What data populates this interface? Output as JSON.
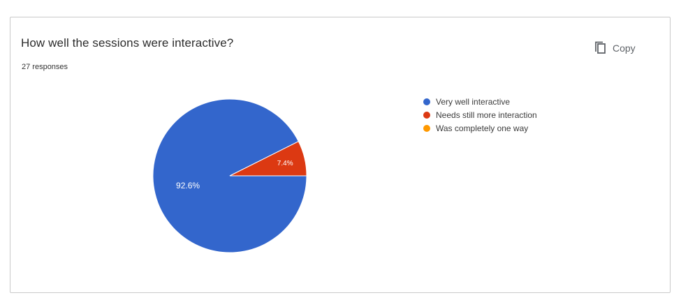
{
  "card": {
    "title": "How well the sessions were interactive?",
    "responses": "27 responses",
    "copy_label": "Copy",
    "copy_icon": "copy-icon"
  },
  "chart_data": {
    "type": "pie",
    "categories": [
      "Very well interactive",
      "Needs still more interaction",
      "Was completely one way"
    ],
    "values": [
      92.6,
      7.4,
      0
    ],
    "data_labels": [
      "92.6%",
      "7.4%",
      ""
    ],
    "colors": [
      "#3366cc",
      "#dc3912",
      "#ff9900"
    ],
    "legend": "right"
  }
}
